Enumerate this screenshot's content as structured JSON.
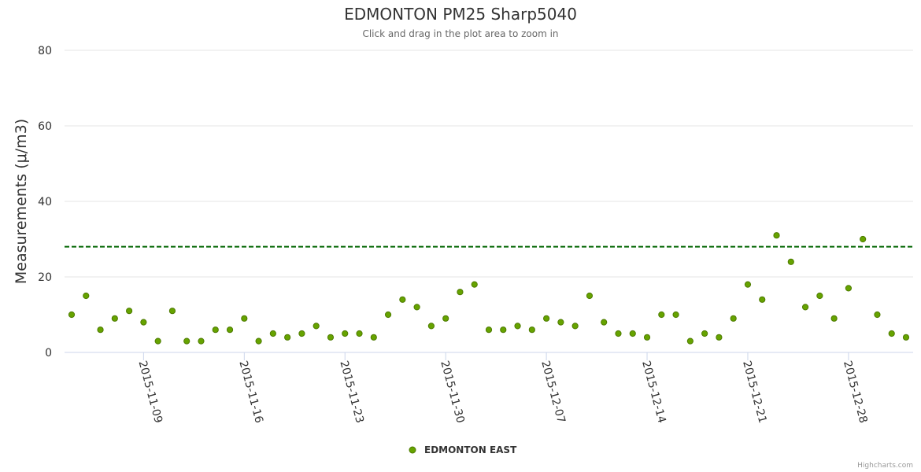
{
  "chart_data": {
    "type": "scatter",
    "title": "EDMONTON PM25 Sharp5040",
    "subtitle": "Click and drag in the plot area to zoom in",
    "ylabel": "Measurements (μ/m3)",
    "xlabel": "",
    "ylim": [
      0,
      80
    ],
    "yticks": [
      0,
      20,
      40,
      60,
      80
    ],
    "grid": true,
    "x_start_date": "2015-11-04",
    "x_end_date": "2016-01-01",
    "x_tick_labels": [
      "2015-11-09",
      "2015-11-16",
      "2015-11-23",
      "2015-11-30",
      "2015-12-07",
      "2015-12-14",
      "2015-12-21",
      "2015-12-28"
    ],
    "threshold": {
      "value": 28,
      "color": "#006400"
    },
    "series": [
      {
        "name": "EDMONTON EAST",
        "color": "#66a300",
        "points": [
          [
            "2015-11-04",
            10
          ],
          [
            "2015-11-05",
            15
          ],
          [
            "2015-11-06",
            6
          ],
          [
            "2015-11-07",
            9
          ],
          [
            "2015-11-08",
            11
          ],
          [
            "2015-11-09",
            8
          ],
          [
            "2015-11-10",
            3
          ],
          [
            "2015-11-11",
            11
          ],
          [
            "2015-11-12",
            3
          ],
          [
            "2015-11-13",
            3
          ],
          [
            "2015-11-14",
            6
          ],
          [
            "2015-11-15",
            6
          ],
          [
            "2015-11-16",
            9
          ],
          [
            "2015-11-17",
            3
          ],
          [
            "2015-11-18",
            5
          ],
          [
            "2015-11-19",
            4
          ],
          [
            "2015-11-20",
            5
          ],
          [
            "2015-11-21",
            7
          ],
          [
            "2015-11-22",
            4
          ],
          [
            "2015-11-23",
            5
          ],
          [
            "2015-11-24",
            5
          ],
          [
            "2015-11-25",
            4
          ],
          [
            "2015-11-26",
            10
          ],
          [
            "2015-11-27",
            14
          ],
          [
            "2015-11-28",
            12
          ],
          [
            "2015-11-29",
            7
          ],
          [
            "2015-11-30",
            9
          ],
          [
            "2015-12-01",
            16
          ],
          [
            "2015-12-02",
            18
          ],
          [
            "2015-12-03",
            6
          ],
          [
            "2015-12-04",
            6
          ],
          [
            "2015-12-05",
            7
          ],
          [
            "2015-12-06",
            6
          ],
          [
            "2015-12-07",
            9
          ],
          [
            "2015-12-08",
            8
          ],
          [
            "2015-12-09",
            7
          ],
          [
            "2015-12-10",
            15
          ],
          [
            "2015-12-11",
            8
          ],
          [
            "2015-12-12",
            5
          ],
          [
            "2015-12-13",
            5
          ],
          [
            "2015-12-14",
            4
          ],
          [
            "2015-12-15",
            10
          ],
          [
            "2015-12-16",
            10
          ],
          [
            "2015-12-17",
            3
          ],
          [
            "2015-12-18",
            5
          ],
          [
            "2015-12-19",
            4
          ],
          [
            "2015-12-20",
            9
          ],
          [
            "2015-12-21",
            18
          ],
          [
            "2015-12-22",
            14
          ],
          [
            "2015-12-23",
            31
          ],
          [
            "2015-12-24",
            24
          ],
          [
            "2015-12-25",
            12
          ],
          [
            "2015-12-26",
            15
          ],
          [
            "2015-12-27",
            9
          ],
          [
            "2015-12-28",
            17
          ],
          [
            "2015-12-29",
            30
          ],
          [
            "2015-12-30",
            10
          ],
          [
            "2015-12-31",
            5
          ],
          [
            "2016-01-01",
            4
          ]
        ]
      }
    ],
    "legend": {
      "position": "bottom-center"
    }
  },
  "credits": "Highcharts.com"
}
